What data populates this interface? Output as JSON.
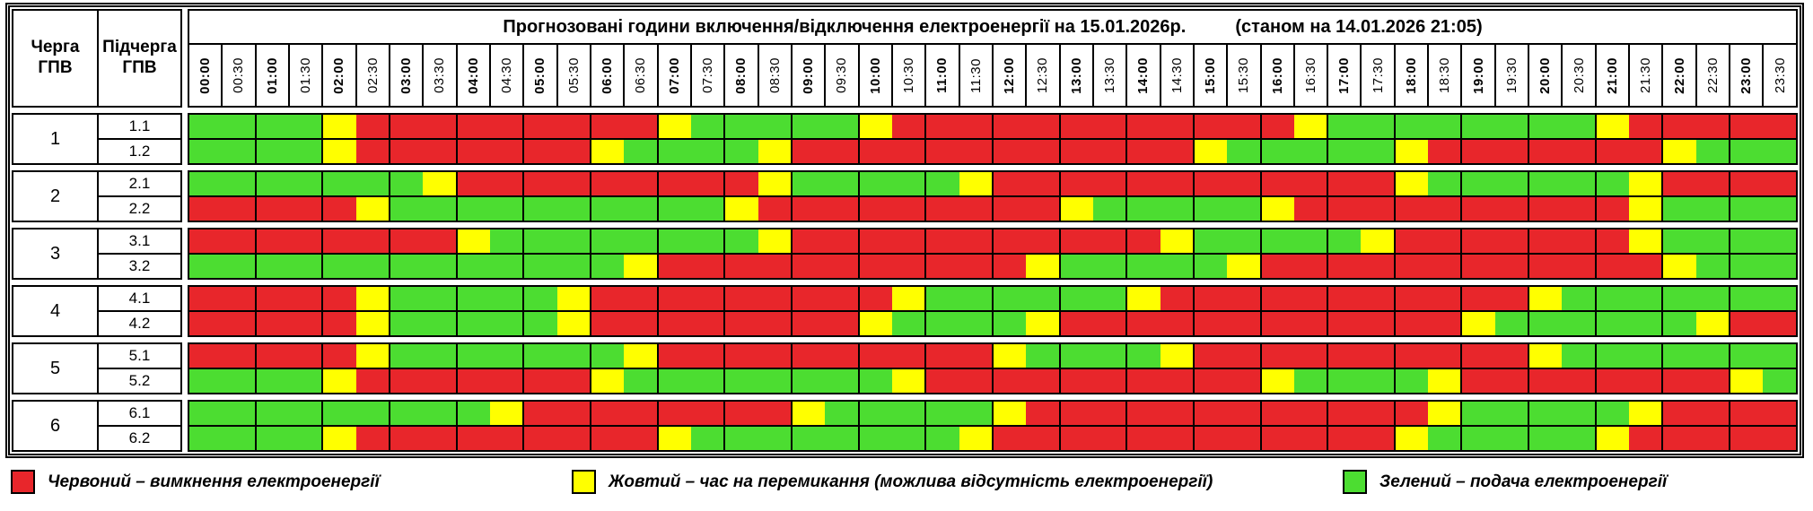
{
  "title": {
    "main": "Прогнозовані години включення/відключення електроенергії на 15.01.2026р.",
    "status": "(станом на 14.01.2026 21:05)"
  },
  "headers": {
    "queue_line1": "Черга",
    "queue_line2": "ГПВ",
    "sub_line1": "Підчерга",
    "sub_line2": "ГПВ"
  },
  "colors": {
    "R": "#e8262b",
    "Y": "#ffff00",
    "G": "#4cdd31"
  },
  "time_slots": [
    "00:00",
    "00:30",
    "01:00",
    "01:30",
    "02:00",
    "02:30",
    "03:00",
    "03:30",
    "04:00",
    "04:30",
    "05:00",
    "05:30",
    "06:00",
    "06:30",
    "07:00",
    "07:30",
    "08:00",
    "08:30",
    "09:00",
    "09:30",
    "10:00",
    "10:30",
    "11:00",
    "11:30",
    "12:00",
    "12:30",
    "13:00",
    "13:30",
    "14:00",
    "14:30",
    "15:00",
    "15:30",
    "16:00",
    "16:30",
    "17:00",
    "17:30",
    "18:00",
    "18:30",
    "19:00",
    "19:30",
    "20:00",
    "20:30",
    "21:00",
    "21:30",
    "22:00",
    "22:30",
    "23:00",
    "23:30"
  ],
  "groups": [
    {
      "queue": "1",
      "rows": [
        {
          "label": "1.1",
          "cells": "GGGGYRRRRRRRRRYGGGGGYRRRRRRRRRRRRYGGGGGGGGYRRRRR"
        },
        {
          "label": "1.2",
          "cells": "GGGGYRRRRRRRYGGGGYRRRRRRRRRRRRYGGGGGYRRRRRRRYGGG"
        }
      ]
    },
    {
      "queue": "2",
      "rows": [
        {
          "label": "2.1",
          "cells": "GGGGGGGYRRRRRRRRRYGGGGGYRRRRRRRRRRRRYGGGGGGYRRRR"
        },
        {
          "label": "2.2",
          "cells": "RRRRRYGGGGGGGGGGYRRRRRRRRRYGGGGGYRRRRRRRRRRYGGGG"
        }
      ]
    },
    {
      "queue": "3",
      "rows": [
        {
          "label": "3.1",
          "cells": "RRRRRRRRYGGGGGGGGYRRRRRRRRRRRYGGGGGYRRRRRRRYGGGG"
        },
        {
          "label": "3.2",
          "cells": "GGGGGGGGGGGGGYRRRRRRRRRRRYGGGGGYRRRRRRRRRRRRYGGG"
        }
      ]
    },
    {
      "queue": "4",
      "rows": [
        {
          "label": "4.1",
          "cells": "RRRRRYGGGGGYRRRRRRRRRYGGGGGGYRRRRRRRRRRRYGGGGGGG"
        },
        {
          "label": "4.2",
          "cells": "RRRRRYGGGGGYRRRRRRRRYGGGGYRRRRRRRRRRRRYGGGGGGYRR"
        }
      ]
    },
    {
      "queue": "5",
      "rows": [
        {
          "label": "5.1",
          "cells": "RRRRRYGGGGGGGYRRRRRRRRRRYGGGGYRRRRRRRRRRYGGGGGGG"
        },
        {
          "label": "5.2",
          "cells": "GGGGYRRRRRRRYGGGGGGGGYRRRRRRRRRRYGGGGYRRRRRRRRYG"
        }
      ]
    },
    {
      "queue": "6",
      "rows": [
        {
          "label": "6.1",
          "cells": "GGGGGGGGGYRRRRRRRRYGGGGGYRRRRRRRRRRRRYGGGGGYRRRR"
        },
        {
          "label": "6.2",
          "cells": "GGGGYRRRRRRRRRYGGGGGGGGYRRRRRRRRRRRRYGGGGGYRRRRR"
        }
      ]
    }
  ],
  "legend": [
    {
      "color_key": "R",
      "label": "Червоний – вимкнення електроенергії"
    },
    {
      "color_key": "Y",
      "label": "Жовтий – час на перемикання (можлива відсутність електроенергії)"
    },
    {
      "color_key": "G",
      "label": "Зелений – подача електроенергії"
    }
  ]
}
